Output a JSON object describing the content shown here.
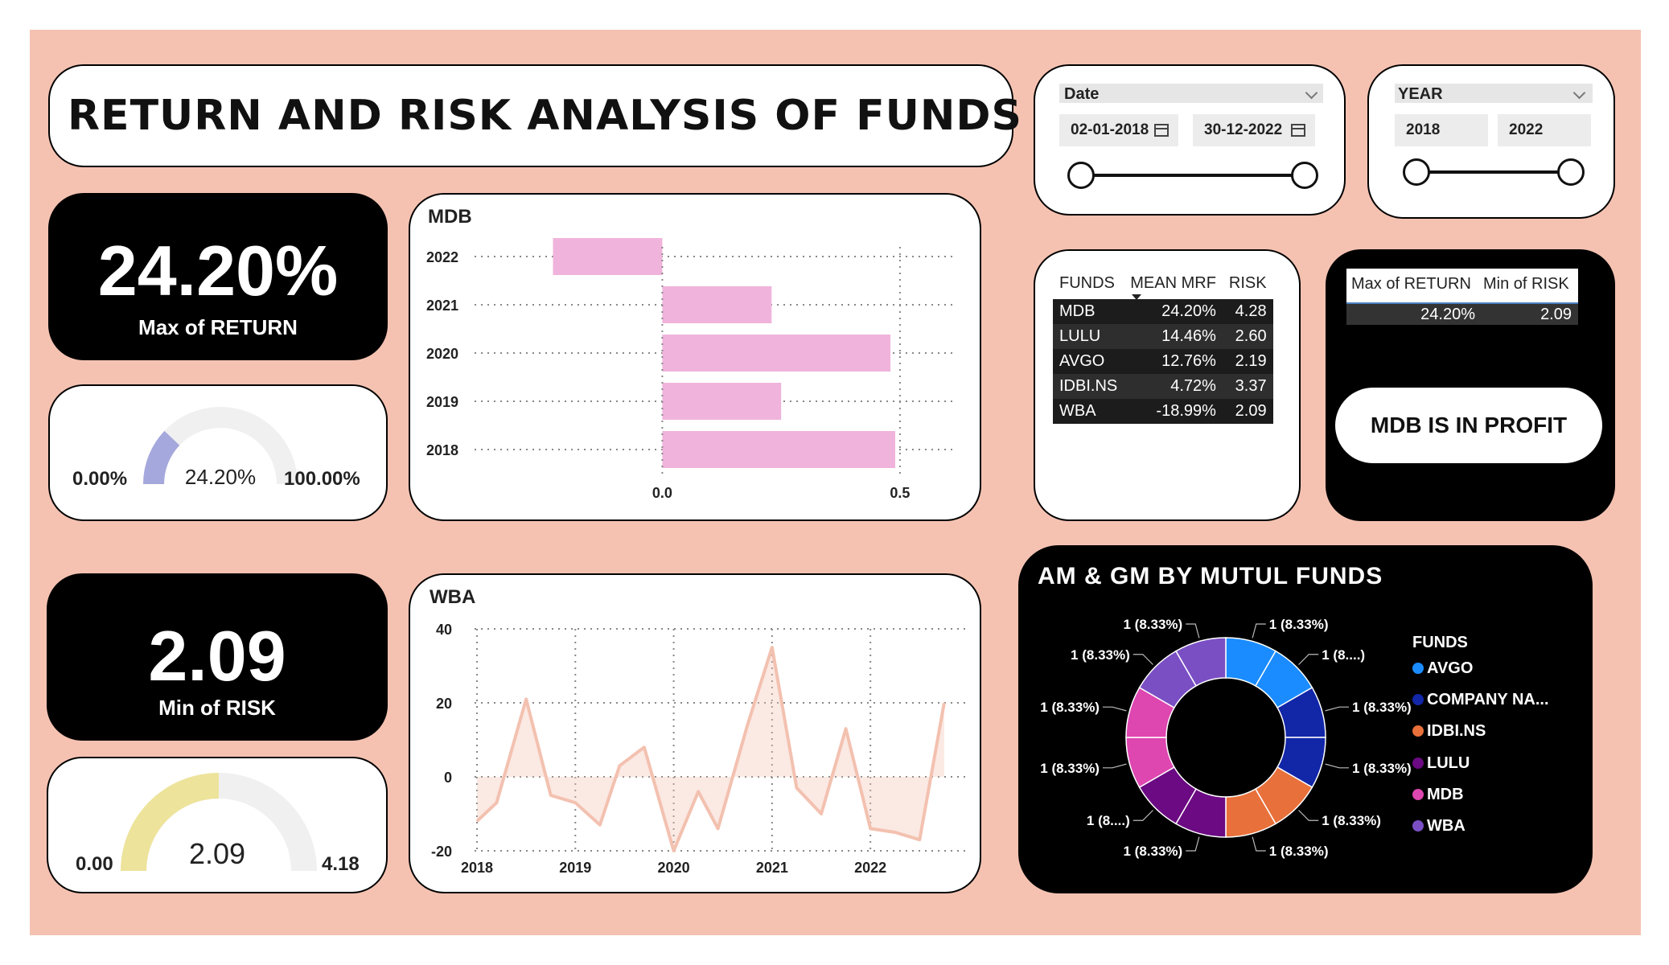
{
  "title": "RETURN AND RISK ANALYSIS OF FUNDS",
  "kpi_return": {
    "value": "24.20%",
    "label": "Max of RETURN"
  },
  "gauge_return": {
    "min": "0.00%",
    "max": "100.00%",
    "value": "24.20%",
    "fraction": 0.242,
    "color": "#a5a8dc"
  },
  "kpi_risk": {
    "value": "2.09",
    "label": "Min of RISK"
  },
  "gauge_risk": {
    "min": "0.00",
    "max": "4.18",
    "value": "2.09",
    "fraction": 0.5,
    "color": "#ede39b"
  },
  "date_slicer": {
    "label": "Date",
    "start": "02-01-2018",
    "end": "30-12-2022"
  },
  "year_slicer": {
    "label": "YEAR",
    "start": "2018",
    "end": "2022"
  },
  "funds_table": {
    "headers": [
      "FUNDS",
      "MEAN MRF",
      "RISK"
    ],
    "rows": [
      [
        "MDB",
        "24.20%",
        "4.28"
      ],
      [
        "LULU",
        "14.46%",
        "2.60"
      ],
      [
        "AVGO",
        "12.76%",
        "2.19"
      ],
      [
        "IDBI.NS",
        "4.72%",
        "3.37"
      ],
      [
        "WBA",
        "-18.99%",
        "2.09"
      ]
    ]
  },
  "summary_table": {
    "headers": [
      "Max of RETURN",
      "Min of RISK"
    ],
    "row": [
      "24.20%",
      "2.09"
    ]
  },
  "profit_button": "MDB IS IN PROFIT",
  "mdb_chart_data": {
    "type": "bar",
    "title": "MDB",
    "categories": [
      "2022",
      "2021",
      "2020",
      "2019",
      "2018"
    ],
    "values": [
      -0.23,
      0.23,
      0.48,
      0.25,
      0.49
    ],
    "xticks": [
      "0.0",
      "0.5"
    ],
    "xlim": [
      -0.4,
      0.6
    ],
    "color": "#f0b3db"
  },
  "wba_chart_data": {
    "type": "area",
    "title": "WBA",
    "x": [
      2018.0,
      2018.2,
      2018.5,
      2018.75,
      2019.0,
      2019.25,
      2019.45,
      2019.7,
      2020.0,
      2020.25,
      2020.45,
      2020.75,
      2021.0,
      2021.25,
      2021.5,
      2021.75,
      2022.0,
      2022.25,
      2022.5,
      2022.75
    ],
    "y": [
      -12,
      -7,
      21,
      -5,
      -7,
      -13,
      3,
      8,
      -20,
      -4,
      -14,
      14,
      35,
      -3,
      -10,
      13,
      -14,
      -15,
      -17,
      20
    ],
    "xticks": [
      "2018",
      "2019",
      "2020",
      "2021",
      "2022"
    ],
    "yticks": [
      "40",
      "20",
      "0",
      "-20"
    ],
    "ylim": [
      -20,
      40
    ],
    "color": "#f3c1b0"
  },
  "donut_chart_data": {
    "type": "pie",
    "title": "AM & GM BY MUTUL FUNDS",
    "legend_title": "FUNDS",
    "legend": [
      {
        "name": "AVGO",
        "color": "#1a8cff"
      },
      {
        "name": "COMPANY NA...",
        "color": "#1226a8"
      },
      {
        "name": "IDBI.NS",
        "color": "#e8703a"
      },
      {
        "name": "LULU",
        "color": "#6b0a82"
      },
      {
        "name": "MDB",
        "color": "#de46b0"
      },
      {
        "name": "WBA",
        "color": "#7a4fc4"
      }
    ],
    "slice_colors": [
      "#1a8cff",
      "#1a8cff",
      "#1226a8",
      "#1226a8",
      "#e8703a",
      "#e8703a",
      "#6b0a82",
      "#6b0a82",
      "#de46b0",
      "#de46b0",
      "#7a4fc4",
      "#7a4fc4"
    ],
    "values": [
      1,
      1,
      1,
      1,
      1,
      1,
      1,
      1,
      1,
      1,
      1,
      1
    ],
    "labels": [
      "1 (8.33%)",
      "1 (8....)",
      "1 (8.33%)",
      "1 (8.33%)",
      "1 (8.33%)",
      "1 (8.33%)",
      "1 (8.33%)",
      "1 (8....)",
      "1 (8.33%)",
      "1 (8.33%)",
      "1 (8.33%)",
      "1 (8.33%)"
    ]
  }
}
